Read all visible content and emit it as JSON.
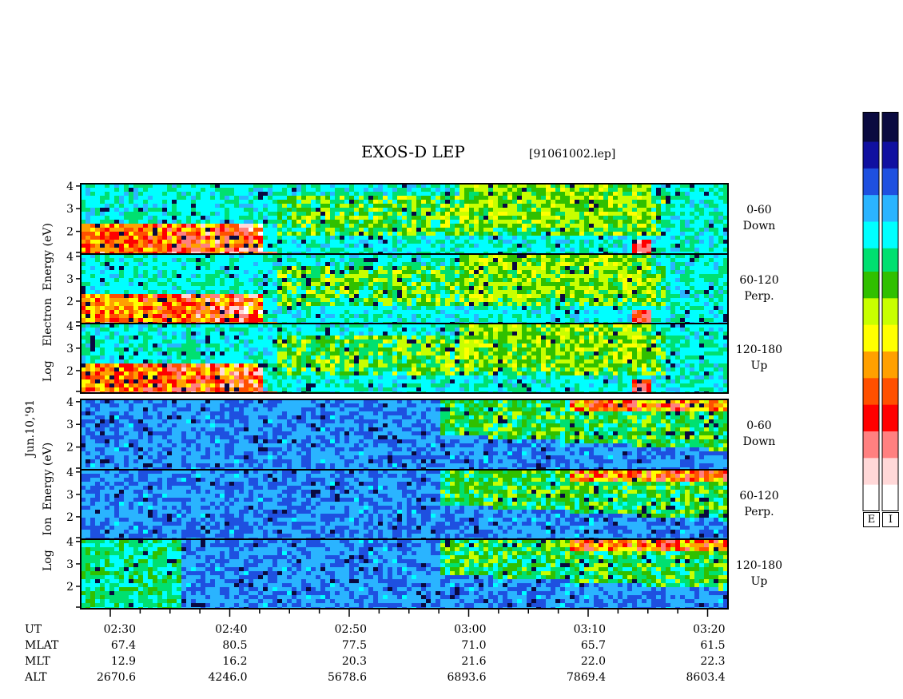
{
  "chart_data": {
    "type": "heatmap",
    "title": "EXOS-D LEP",
    "file_id": "[91061002.lep]",
    "date_label": "Jun.10,'91",
    "electron_axis_label": [
      "Log",
      "Electron",
      "Energy",
      "(eV)"
    ],
    "ion_axis_label": [
      "Log",
      "Ion",
      "Energy",
      "(eV)"
    ],
    "y_ticks": [
      "4",
      "3",
      "2"
    ],
    "ylim": [
      1,
      4.1
    ],
    "panels": [
      {
        "group": "Electron",
        "band": "0-60",
        "direction": "Down"
      },
      {
        "group": "Electron",
        "band": "60-120",
        "direction": "Perp."
      },
      {
        "group": "Electron",
        "band": "120-180",
        "direction": "Up"
      },
      {
        "group": "Ion",
        "band": "0-60",
        "direction": "Down"
      },
      {
        "group": "Ion",
        "band": "60-120",
        "direction": "Perp."
      },
      {
        "group": "Ion",
        "band": "120-180",
        "direction": "Up"
      }
    ],
    "x_tick_labels": [
      "02:30",
      "02:40",
      "02:50",
      "03:00",
      "03:10",
      "03:20"
    ],
    "orbit_rows": [
      {
        "label": "UT",
        "values": [
          "02:30",
          "02:40",
          "02:50",
          "03:00",
          "03:10",
          "03:20"
        ]
      },
      {
        "label": "MLAT",
        "values": [
          "67.4",
          "80.5",
          "77.5",
          "71.0",
          "65.7",
          "61.5"
        ]
      },
      {
        "label": "MLT",
        "values": [
          "12.9",
          "16.2",
          "20.3",
          "21.6",
          "22.0",
          "22.3"
        ]
      },
      {
        "label": "ALT",
        "values": [
          "2670.6",
          "4246.0",
          "5678.6",
          "6893.6",
          "7869.4",
          "8603.4"
        ]
      }
    ],
    "colorbar_labels": [
      "E",
      "I"
    ],
    "colormap": [
      "#0a0a40",
      "#1010a0",
      "#1e50e0",
      "#2ab4ff",
      "#00ffff",
      "#00e070",
      "#30c000",
      "#c8ff00",
      "#ffff00",
      "#ffa000",
      "#ff5000",
      "#ff0000",
      "#ff8080",
      "#ffd8d8",
      "#ffffff"
    ]
  }
}
